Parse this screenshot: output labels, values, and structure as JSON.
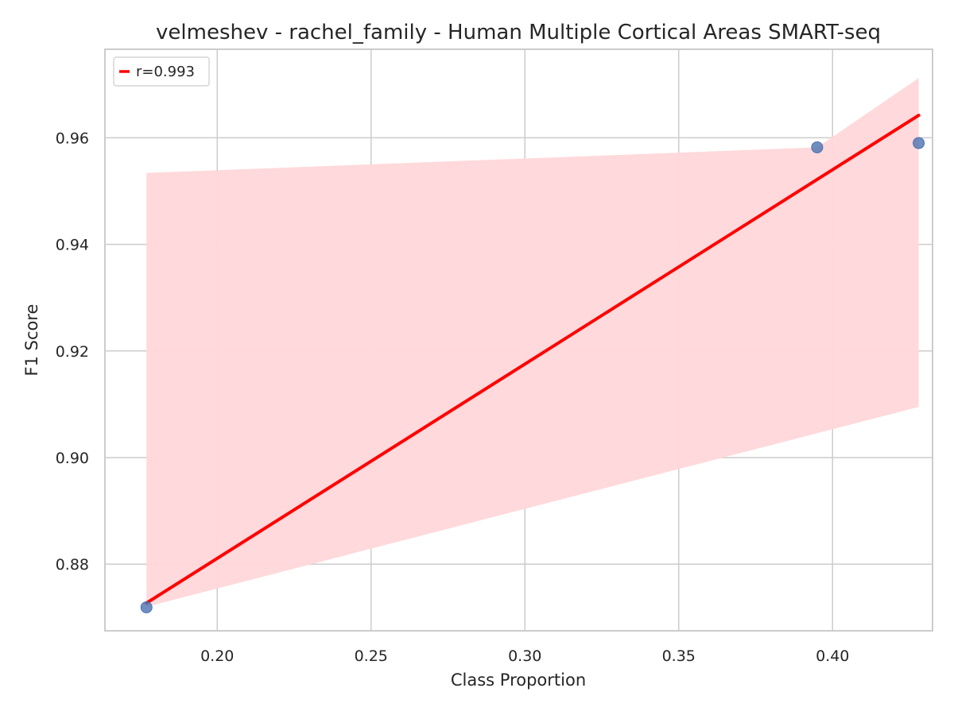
{
  "chart_data": {
    "type": "scatter",
    "title": "velmeshev - rachel_family - Human Multiple Cortical Areas SMART-seq",
    "xlabel": "Class Proportion",
    "ylabel": "F1 Score",
    "xlim": [
      0.1635,
      0.4325
    ],
    "ylim": [
      0.8675,
      0.9766
    ],
    "xticks": [
      0.2,
      0.25,
      0.3,
      0.35,
      0.4
    ],
    "xtick_labels": [
      "0.20",
      "0.25",
      "0.30",
      "0.35",
      "0.40"
    ],
    "yticks": [
      0.88,
      0.9,
      0.92,
      0.94,
      0.96
    ],
    "ytick_labels": [
      "0.88",
      "0.90",
      "0.92",
      "0.94",
      "0.96"
    ],
    "grid": true,
    "legend": {
      "placement": "top-left",
      "entries": [
        "r=0.993"
      ]
    },
    "points": [
      {
        "x": 0.177,
        "y": 0.8719
      },
      {
        "x": 0.395,
        "y": 0.9582
      },
      {
        "x": 0.428,
        "y": 0.959
      }
    ],
    "regression": {
      "x": [
        0.177,
        0.428
      ],
      "y": [
        0.8727,
        0.9642
      ],
      "ci_upper": [
        {
          "x": 0.177,
          "y": 0.9534
        },
        {
          "x": 0.395,
          "y": 0.9582
        },
        {
          "x": 0.428,
          "y": 0.9712
        }
      ],
      "ci_lower": [
        {
          "x": 0.177,
          "y": 0.872
        },
        {
          "x": 0.428,
          "y": 0.9095
        }
      ],
      "label": "r=0.993"
    },
    "colors": {
      "points": "#4c72b0",
      "line": "#ff0000",
      "band": "#ffd7d9",
      "grid": "#cccccc",
      "spine": "#cccccc",
      "text": "#262626"
    }
  }
}
